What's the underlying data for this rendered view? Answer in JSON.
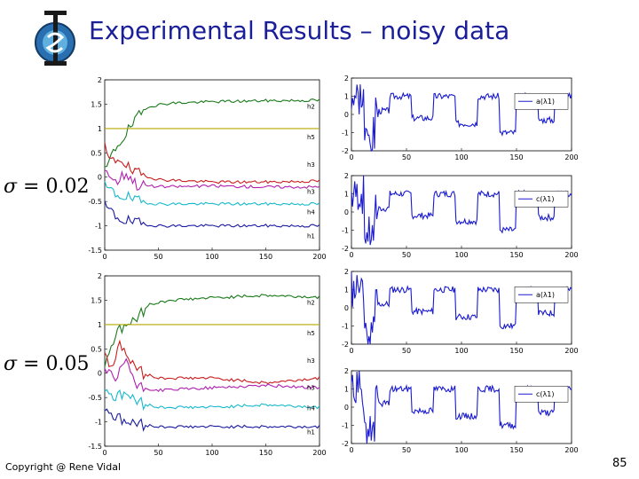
{
  "slide": {
    "title": "Experimental Results – noisy data",
    "footer": "Copyright @ Rene Vidal",
    "page_number": "85"
  },
  "sigma_labels": [
    {
      "symbol": "σ",
      "equals": " = ",
      "value": "0.02"
    },
    {
      "symbol": "σ",
      "equals": " = ",
      "value": "0.05"
    }
  ],
  "chart_data": [
    {
      "type": "line",
      "name": "left-top",
      "ylim": [
        -1.5,
        2
      ],
      "xlim": [
        0,
        200
      ],
      "yticks": [
        "2",
        "1.5",
        "1",
        "0.5",
        "0",
        "-0.5",
        "-1",
        "-1.5"
      ],
      "xticks": [
        "0",
        "50",
        "100",
        "150",
        "200"
      ],
      "series": [
        {
          "name": "h2",
          "color": "#1a7a1a",
          "x": [
            0,
            10,
            20,
            30,
            40,
            60,
            100,
            150,
            200
          ],
          "y": [
            0.1,
            0.6,
            0.9,
            1.2,
            1.45,
            1.52,
            1.55,
            1.57,
            1.58
          ]
        },
        {
          "name": "h5",
          "color": "#b8a800",
          "x": [
            0,
            200
          ],
          "y": [
            1,
            1
          ]
        },
        {
          "name": "h3",
          "color": "#c81e1e",
          "x": [
            0,
            5,
            15,
            25,
            35,
            50,
            100,
            150,
            200
          ],
          "y": [
            0.6,
            0.3,
            0.4,
            0.1,
            0.05,
            -0.05,
            -0.1,
            -0.1,
            -0.08
          ]
        },
        {
          "name": "h3'",
          "color": "#b020b0",
          "x": [
            0,
            10,
            20,
            30,
            50,
            100,
            150,
            200
          ],
          "y": [
            0.2,
            -0.1,
            0.1,
            -0.15,
            -0.2,
            -0.18,
            -0.2,
            -0.2
          ]
        },
        {
          "name": "h4",
          "color": "#18b8cc",
          "x": [
            0,
            10,
            20,
            30,
            50,
            100,
            150,
            200
          ],
          "y": [
            -0.2,
            -0.35,
            -0.4,
            -0.5,
            -0.55,
            -0.55,
            -0.55,
            -0.55
          ]
        },
        {
          "name": "h1",
          "color": "#1a1aa0",
          "x": [
            0,
            10,
            20,
            30,
            50,
            100,
            150,
            200
          ],
          "y": [
            -0.6,
            -0.8,
            -0.9,
            -0.95,
            -1.0,
            -1.0,
            -1.0,
            -1.0
          ]
        }
      ],
      "labels": [
        "h2",
        "h5",
        "h3",
        "h3",
        "h4",
        "h1"
      ]
    },
    {
      "type": "line",
      "name": "left-bottom",
      "ylim": [
        -1.5,
        2
      ],
      "xlim": [
        0,
        200
      ],
      "yticks": [
        "2",
        "1.5",
        "1",
        "0.5",
        "0",
        "-0.5",
        "-1",
        "-1.5"
      ],
      "xticks": [
        "0",
        "50",
        "100",
        "150",
        "200"
      ],
      "series": [
        {
          "name": "h2",
          "color": "#1a7a1a",
          "x": [
            0,
            10,
            20,
            30,
            40,
            60,
            100,
            150,
            200
          ],
          "y": [
            0.2,
            0.8,
            1.0,
            1.1,
            1.4,
            1.5,
            1.55,
            1.6,
            1.56
          ]
        },
        {
          "name": "h5",
          "color": "#b8a800",
          "x": [
            0,
            200
          ],
          "y": [
            1,
            1
          ]
        },
        {
          "name": "h3",
          "color": "#c81e1e",
          "x": [
            0,
            5,
            15,
            25,
            35,
            50,
            100,
            150,
            200
          ],
          "y": [
            0.5,
            0.1,
            0.6,
            0.2,
            0.0,
            -0.1,
            -0.1,
            -0.2,
            -0.1
          ]
        },
        {
          "name": "h3'",
          "color": "#b020b0",
          "x": [
            0,
            10,
            20,
            30,
            50,
            100,
            150,
            200
          ],
          "y": [
            0.1,
            -0.2,
            0.3,
            -0.3,
            -0.35,
            -0.3,
            -0.25,
            -0.3
          ]
        },
        {
          "name": "h4",
          "color": "#18b8cc",
          "x": [
            0,
            10,
            20,
            30,
            50,
            100,
            150,
            200
          ],
          "y": [
            -0.3,
            -0.5,
            -0.4,
            -0.6,
            -0.7,
            -0.7,
            -0.65,
            -0.7
          ]
        },
        {
          "name": "h1",
          "color": "#1a1aa0",
          "x": [
            0,
            10,
            20,
            30,
            50,
            100,
            150,
            200
          ],
          "y": [
            -0.7,
            -0.9,
            -1.0,
            -1.05,
            -1.1,
            -1.1,
            -1.1,
            -1.1
          ]
        }
      ],
      "labels": [
        "h2",
        "h5",
        "h3",
        "h3",
        "h4",
        "h1"
      ]
    },
    {
      "type": "line",
      "name": "right-1",
      "ylim": [
        -2,
        2
      ],
      "xlim": [
        0,
        200
      ],
      "yticks": [
        "2",
        "1",
        "0",
        "-1",
        "-2"
      ],
      "xticks": [
        "0",
        "50",
        "100",
        "150",
        "200"
      ],
      "legend": "a(λ1)",
      "series": [
        {
          "name": "a(λ1)",
          "color": "#1a1ad0",
          "seed": 3
        }
      ]
    },
    {
      "type": "line",
      "name": "right-2",
      "ylim": [
        -2,
        2
      ],
      "xlim": [
        0,
        200
      ],
      "yticks": [
        "2",
        "1",
        "0",
        "-1",
        "-2"
      ],
      "xticks": [
        "0",
        "50",
        "100",
        "150",
        "200"
      ],
      "legend": "c(λ1)",
      "series": [
        {
          "name": "c(λ1)",
          "color": "#1a1ad0",
          "seed": 7
        }
      ]
    },
    {
      "type": "line",
      "name": "right-3",
      "ylim": [
        -2,
        2
      ],
      "xlim": [
        0,
        200
      ],
      "yticks": [
        "2",
        "1",
        "0",
        "-1",
        "-2"
      ],
      "xticks": [
        "0",
        "50",
        "100",
        "150",
        "200"
      ],
      "legend": "a(λ1)",
      "series": [
        {
          "name": "a(λ1)",
          "color": "#1a1ad0",
          "seed": 11
        }
      ]
    },
    {
      "type": "line",
      "name": "right-4",
      "ylim": [
        -2,
        2
      ],
      "xlim": [
        0,
        200
      ],
      "yticks": [
        "2",
        "1",
        "0",
        "-1",
        "-2"
      ],
      "xticks": [
        "0",
        "50",
        "100",
        "150",
        "200"
      ],
      "legend": "c(λ1)",
      "series": [
        {
          "name": "c(λ1)",
          "color": "#1a1ad0",
          "seed": 19
        }
      ]
    }
  ]
}
